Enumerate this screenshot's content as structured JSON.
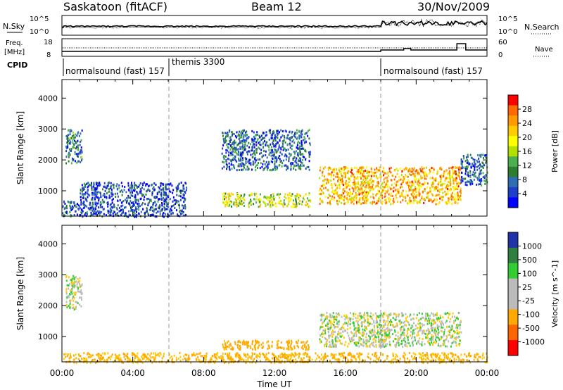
{
  "header": {
    "station": "Saskatoon (fitACF)",
    "beam": "Beam 12",
    "date": "30/Nov/2009"
  },
  "top_panel": {
    "left_label": "N.Sky",
    "left_ticks": [
      "10^5",
      "10^0"
    ],
    "right_label": "N.Search",
    "right_ticks": [
      "10^5",
      "10^0"
    ]
  },
  "freq_panel": {
    "left_label_1": "Freq.",
    "left_label_2": "[MHz]",
    "left_ticks": [
      "18",
      "8"
    ],
    "right_label": "Nave",
    "right_ticks": [
      "60",
      "0"
    ]
  },
  "cpid_panel": {
    "label": "CPID",
    "segments": [
      {
        "text": "normalsound (fast) 157",
        "start": "00:00",
        "end": "06:00"
      },
      {
        "text": "themis 3300",
        "start": "06:00",
        "end": "18:00"
      },
      {
        "text": "normalsound (fast) 157",
        "start": "18:00",
        "end": "24:00"
      }
    ]
  },
  "power_colorbar": {
    "label": "Power [dB]",
    "ticks": [
      "28",
      "24",
      "20",
      "16",
      "12",
      "8",
      "4"
    ],
    "colors": [
      "#ff0000",
      "#ff6a00",
      "#ff9a00",
      "#ffcc00",
      "#ffff00",
      "#b4e000",
      "#4caf50",
      "#2e7d32",
      "#2e6db4",
      "#1e40c8",
      "#0000ff"
    ]
  },
  "velocity_colorbar": {
    "label": "Velocity [m s^-1]",
    "ticks": [
      "1000",
      "500",
      "100",
      "25",
      "-25",
      "-100",
      "-500",
      "-1000"
    ],
    "colors": [
      "#2233aa",
      "#2f7f3f",
      "#33cc33",
      "#bbbbbb",
      "#bbbbbb",
      "#ffaa00",
      "#ff6600",
      "#ff0000"
    ]
  },
  "chart_data": [
    {
      "type": "heatmap",
      "title": "Power",
      "xlabel": "",
      "ylabel": "Slant Range [km]",
      "x_ticks": [
        "00:00",
        "04:00",
        "08:00",
        "12:00",
        "16:00",
        "20:00",
        "00:00"
      ],
      "y_ticks": [
        "1000",
        "2000",
        "3000",
        "4000"
      ],
      "xlim_hours": [
        0,
        24
      ],
      "ylim_km": [
        180,
        4600
      ],
      "scatter_regions": [
        {
          "t0": 0.0,
          "t1": 1.0,
          "r0": 180,
          "r1": 700,
          "power_db": 8
        },
        {
          "t0": 0.2,
          "t1": 1.1,
          "r0": 1900,
          "r1": 3000,
          "power_db": 10
        },
        {
          "t0": 1.0,
          "t1": 7.0,
          "r0": 180,
          "r1": 1300,
          "power_db": 6
        },
        {
          "t0": 9.0,
          "t1": 14.0,
          "r0": 500,
          "r1": 950,
          "power_db": 18
        },
        {
          "t0": 9.0,
          "t1": 14.0,
          "r0": 1700,
          "r1": 3000,
          "power_db": 8
        },
        {
          "t0": 14.5,
          "t1": 22.5,
          "r0": 600,
          "r1": 1800,
          "power_db": 24
        },
        {
          "t0": 22.5,
          "t1": 24.0,
          "r0": 1200,
          "r1": 2200,
          "power_db": 8
        }
      ]
    },
    {
      "type": "heatmap",
      "title": "Velocity",
      "xlabel": "Time UT",
      "ylabel": "Slant Range [km]",
      "x_ticks": [
        "00:00",
        "04:00",
        "08:00",
        "12:00",
        "16:00",
        "20:00",
        "00:00"
      ],
      "y_ticks": [
        "1000",
        "2000",
        "3000",
        "4000"
      ],
      "xlim_hours": [
        0,
        24
      ],
      "ylim_km": [
        180,
        4600
      ],
      "scatter_regions": [
        {
          "t0": 0.2,
          "t1": 1.1,
          "r0": 1900,
          "r1": 3000,
          "velocity": 0
        },
        {
          "t0": 9.0,
          "t1": 14.0,
          "r0": 600,
          "r1": 900,
          "velocity": -150
        },
        {
          "t0": 14.5,
          "t1": 22.5,
          "r0": 700,
          "r1": 1800,
          "velocity": 0
        },
        {
          "t0": 0.0,
          "t1": 24.0,
          "r0": 180,
          "r1": 500,
          "velocity": -120
        }
      ]
    }
  ]
}
